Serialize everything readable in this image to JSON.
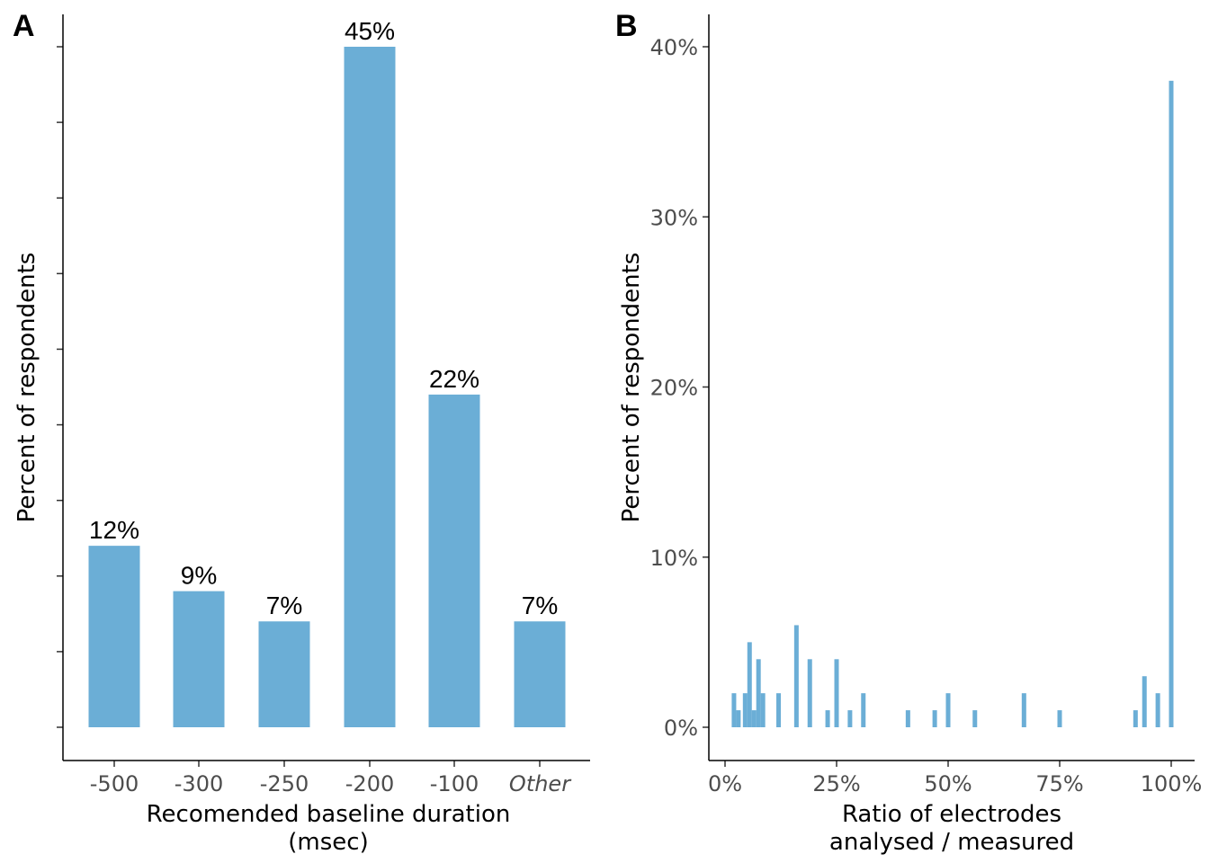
{
  "chart_data": [
    {
      "panel": "A",
      "type": "bar",
      "title": "",
      "xlabel": "Recomended baseline duration\n(msec)",
      "ylabel": "Percent of respondents",
      "categories": [
        "-500",
        "-300",
        "-250",
        "-200",
        "-100",
        "Other"
      ],
      "italic_categories": [
        "Other"
      ],
      "values": [
        12,
        9,
        7,
        45,
        22,
        7
      ],
      "value_labels": [
        "12%",
        "9%",
        "7%",
        "45%",
        "22%",
        "7%"
      ],
      "ylim": [
        0,
        45
      ],
      "yticks": [
        0,
        5,
        10,
        15,
        20,
        25,
        30,
        35,
        40,
        45
      ],
      "ytick_labels_shown": false,
      "color": "#6baed6",
      "grid": false
    },
    {
      "panel": "B",
      "type": "bar",
      "title": "",
      "xlabel": "Ratio of electrodes\nanalysed / measured",
      "ylabel": "Percent of respondents",
      "xlim": [
        0,
        100
      ],
      "xticks": [
        0,
        25,
        50,
        75,
        100
      ],
      "xtick_labels": [
        "0%",
        "25%",
        "50%",
        "75%",
        "100%"
      ],
      "yticks": [
        0,
        10,
        20,
        30,
        40
      ],
      "ytick_labels": [
        "0%",
        "10%",
        "20%",
        "30%",
        "40%"
      ],
      "ylim": [
        0,
        40
      ],
      "x": [
        2,
        3,
        4.5,
        5.5,
        6.5,
        7.5,
        8.5,
        12,
        16,
        19,
        23,
        25,
        28,
        31,
        41,
        47,
        50,
        56,
        67,
        75,
        92,
        94,
        97,
        100
      ],
      "values": [
        2,
        1,
        2,
        5,
        1,
        4,
        2,
        2,
        6,
        4,
        1,
        4,
        1,
        2,
        1,
        1,
        2,
        1,
        2,
        1,
        1,
        3,
        2,
        38
      ],
      "color": "#6baed6",
      "grid": false
    }
  ]
}
